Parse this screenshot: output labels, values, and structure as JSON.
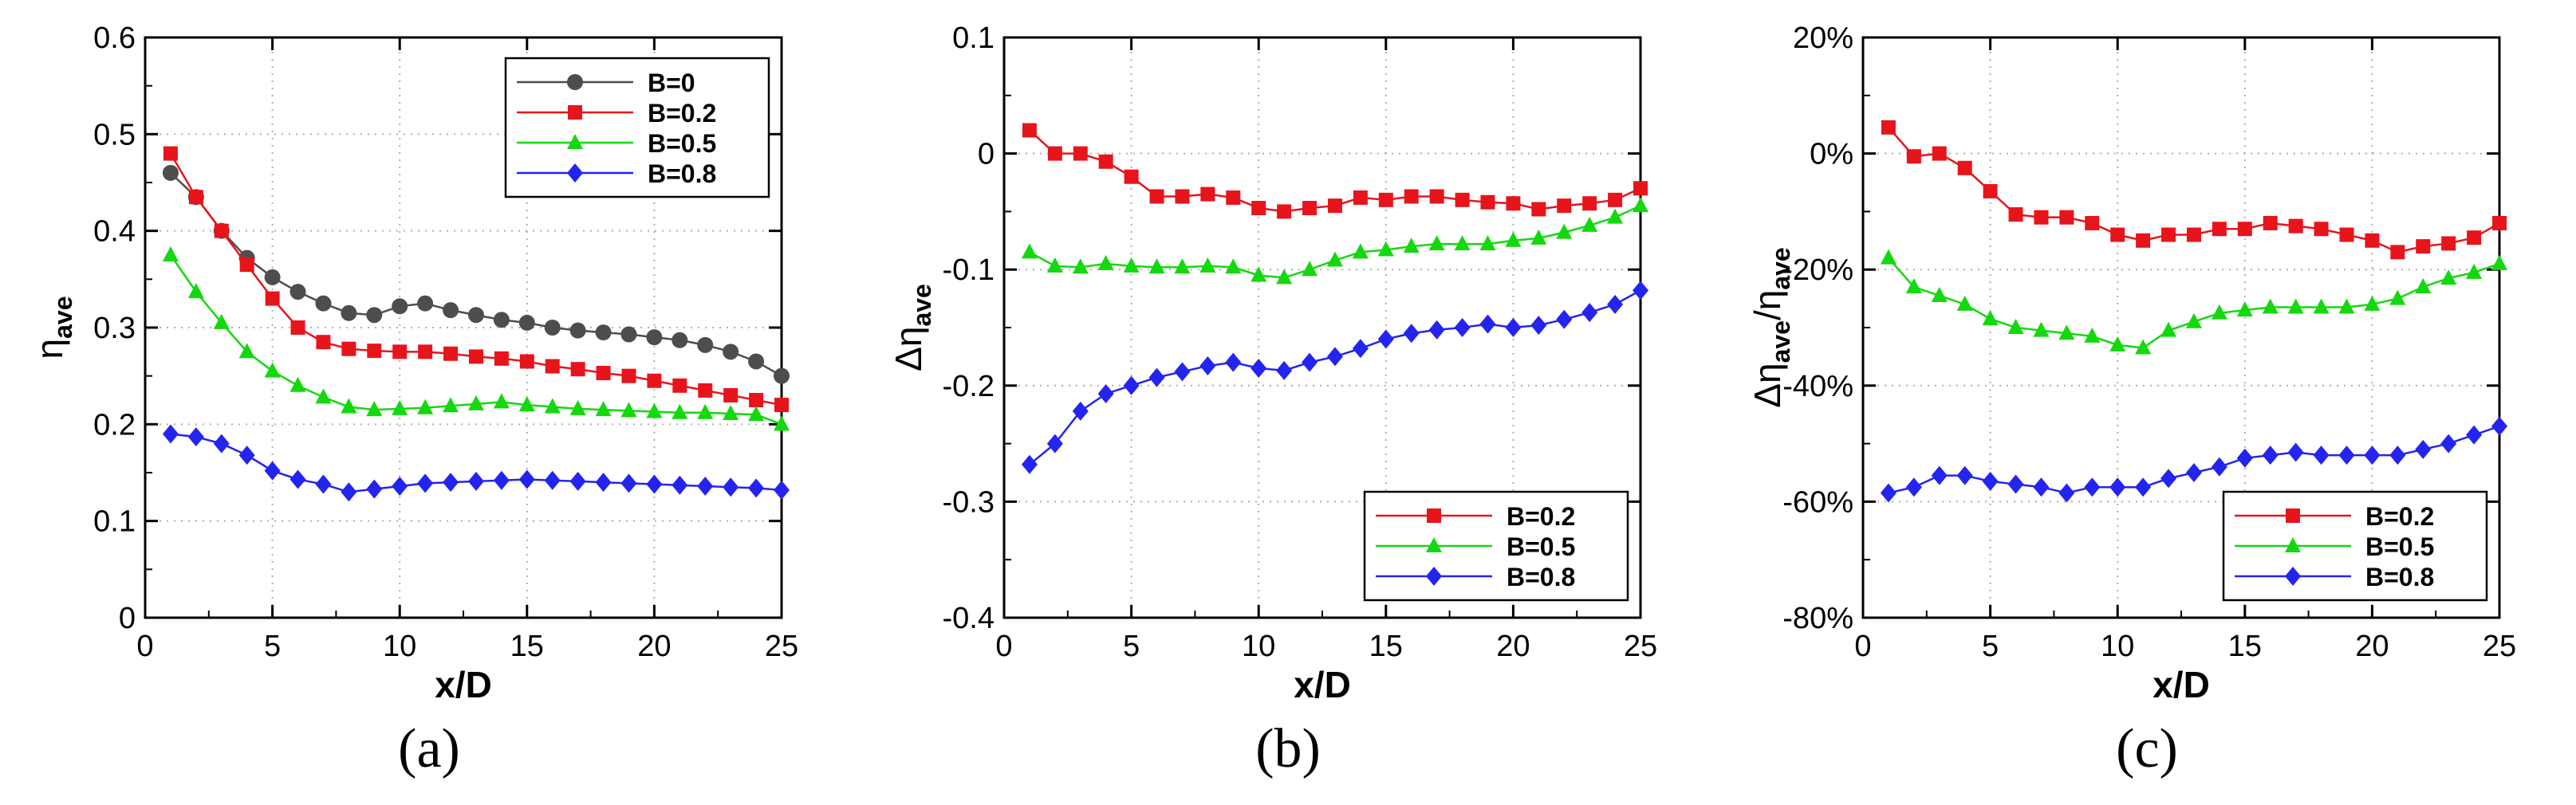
{
  "chart_data": [
    {
      "type": "line",
      "panel_label": "(a)",
      "xlabel": "x/D",
      "ylabel_main": "η",
      "ylabel_sub": "ave",
      "xlim": [
        0,
        25
      ],
      "ylim": [
        0,
        0.6
      ],
      "xticks": [
        0,
        5,
        10,
        15,
        20,
        25
      ],
      "yticks": [
        0,
        0.1,
        0.2,
        0.3,
        0.4,
        0.5,
        0.6
      ],
      "ytick_labels": [
        "0",
        "0.1",
        "0.2",
        "0.3",
        "0.4",
        "0.5",
        "0.6"
      ],
      "legend_position": "top-right",
      "x": [
        1,
        2,
        3,
        4,
        5,
        6,
        7,
        8,
        9,
        10,
        11,
        12,
        13,
        14,
        15,
        16,
        17,
        18,
        19,
        20,
        21,
        22,
        23,
        24,
        25
      ],
      "series": [
        {
          "name": "B=0",
          "color": "#4d4d4d",
          "marker": "circle",
          "values": [
            0.46,
            0.435,
            0.4,
            0.372,
            0.352,
            0.337,
            0.325,
            0.315,
            0.313,
            0.322,
            0.325,
            0.318,
            0.313,
            0.308,
            0.305,
            0.3,
            0.297,
            0.295,
            0.293,
            0.29,
            0.287,
            0.282,
            0.275,
            0.265,
            0.25
          ]
        },
        {
          "name": "B=0.2",
          "color": "#e8141b",
          "marker": "square",
          "values": [
            0.48,
            0.435,
            0.4,
            0.365,
            0.33,
            0.3,
            0.285,
            0.278,
            0.276,
            0.275,
            0.275,
            0.273,
            0.27,
            0.268,
            0.265,
            0.26,
            0.257,
            0.253,
            0.25,
            0.245,
            0.24,
            0.235,
            0.23,
            0.225,
            0.22
          ]
        },
        {
          "name": "B=0.5",
          "color": "#14d80e",
          "marker": "triangle",
          "values": [
            0.375,
            0.337,
            0.305,
            0.275,
            0.255,
            0.24,
            0.228,
            0.218,
            0.215,
            0.216,
            0.217,
            0.219,
            0.221,
            0.223,
            0.22,
            0.218,
            0.216,
            0.215,
            0.214,
            0.213,
            0.212,
            0.212,
            0.211,
            0.21,
            0.2
          ]
        },
        {
          "name": "B=0.8",
          "color": "#2424f0",
          "marker": "diamond",
          "values": [
            0.19,
            0.187,
            0.18,
            0.168,
            0.152,
            0.143,
            0.138,
            0.13,
            0.133,
            0.136,
            0.139,
            0.14,
            0.141,
            0.142,
            0.143,
            0.142,
            0.141,
            0.14,
            0.139,
            0.138,
            0.137,
            0.136,
            0.135,
            0.134,
            0.132
          ]
        }
      ]
    },
    {
      "type": "line",
      "panel_label": "(b)",
      "xlabel": "x/D",
      "ylabel_main": "Δη",
      "ylabel_sub": "ave",
      "xlim": [
        0,
        25
      ],
      "ylim": [
        -0.4,
        0.1
      ],
      "xticks": [
        0,
        5,
        10,
        15,
        20,
        25
      ],
      "yticks": [
        -0.4,
        -0.3,
        -0.2,
        -0.1,
        0,
        0.1
      ],
      "ytick_labels": [
        "-0.4",
        "-0.3",
        "-0.2",
        "-0.1",
        "0",
        "0.1"
      ],
      "legend_position": "bottom-right",
      "x": [
        1,
        2,
        3,
        4,
        5,
        6,
        7,
        8,
        9,
        10,
        11,
        12,
        13,
        14,
        15,
        16,
        17,
        18,
        19,
        20,
        21,
        22,
        23,
        24,
        25
      ],
      "series": [
        {
          "name": "B=0.2",
          "color": "#e8141b",
          "marker": "square",
          "values": [
            0.02,
            0.0,
            0.0,
            -0.007,
            -0.02,
            -0.037,
            -0.037,
            -0.035,
            -0.038,
            -0.047,
            -0.05,
            -0.047,
            -0.045,
            -0.038,
            -0.04,
            -0.037,
            -0.037,
            -0.04,
            -0.042,
            -0.043,
            -0.048,
            -0.045,
            -0.043,
            -0.04,
            -0.03
          ]
        },
        {
          "name": "B=0.5",
          "color": "#14d80e",
          "marker": "triangle",
          "values": [
            -0.085,
            -0.097,
            -0.098,
            -0.095,
            -0.097,
            -0.098,
            -0.098,
            -0.097,
            -0.098,
            -0.105,
            -0.107,
            -0.1,
            -0.092,
            -0.085,
            -0.083,
            -0.08,
            -0.078,
            -0.078,
            -0.078,
            -0.075,
            -0.073,
            -0.068,
            -0.062,
            -0.055,
            -0.045
          ]
        },
        {
          "name": "B=0.8",
          "color": "#2424f0",
          "marker": "diamond",
          "values": [
            -0.268,
            -0.25,
            -0.222,
            -0.207,
            -0.2,
            -0.193,
            -0.188,
            -0.183,
            -0.18,
            -0.185,
            -0.187,
            -0.18,
            -0.175,
            -0.168,
            -0.16,
            -0.155,
            -0.152,
            -0.15,
            -0.147,
            -0.15,
            -0.148,
            -0.143,
            -0.137,
            -0.13,
            -0.118
          ]
        }
      ]
    },
    {
      "type": "line",
      "panel_label": "(c)",
      "xlabel": "x/D",
      "ylabel_main": "Δη",
      "ylabel_sub": "ave",
      "ylabel_div": "/η",
      "ylabel_sub2": "ave",
      "xlim": [
        0,
        25
      ],
      "ylim": [
        -80,
        20
      ],
      "xticks": [
        0,
        5,
        10,
        15,
        20,
        25
      ],
      "yticks": [
        -80,
        -60,
        -40,
        -20,
        0,
        20
      ],
      "ytick_labels": [
        "-80%",
        "-60%",
        "-40%",
        "-20%",
        "0%",
        "20%"
      ],
      "legend_position": "bottom-right",
      "x": [
        1,
        2,
        3,
        4,
        5,
        6,
        7,
        8,
        9,
        10,
        11,
        12,
        13,
        14,
        15,
        16,
        17,
        18,
        19,
        20,
        21,
        22,
        23,
        24,
        25
      ],
      "series": [
        {
          "name": "B=0.2",
          "color": "#e8141b",
          "marker": "square",
          "values": [
            4.5,
            -0.5,
            0,
            -2.5,
            -6.5,
            -10.5,
            -11,
            -11,
            -12,
            -14,
            -15,
            -14,
            -14,
            -13,
            -13,
            -12,
            -12.5,
            -13,
            -14,
            -15,
            -17,
            -16,
            -15.5,
            -14.5,
            -12
          ]
        },
        {
          "name": "B=0.5",
          "color": "#14d80e",
          "marker": "triangle",
          "values": [
            -18,
            -23,
            -24.5,
            -26,
            -28.5,
            -30,
            -30.5,
            -31,
            -31.5,
            -33,
            -33.5,
            -30.5,
            -29,
            -27.5,
            -27,
            -26.5,
            -26.5,
            -26.5,
            -26.5,
            -26,
            -25,
            -23,
            -21.5,
            -20.5,
            -19
          ]
        },
        {
          "name": "B=0.8",
          "color": "#2424f0",
          "marker": "diamond",
          "values": [
            -58.5,
            -57.5,
            -55.5,
            -55.5,
            -56.5,
            -57,
            -57.5,
            -58.5,
            -57.5,
            -57.5,
            -57.5,
            -56,
            -55,
            -54,
            -52.5,
            -52,
            -51.5,
            -52,
            -52,
            -52,
            -52,
            -51,
            -50,
            -48.5,
            -47
          ]
        }
      ]
    }
  ]
}
